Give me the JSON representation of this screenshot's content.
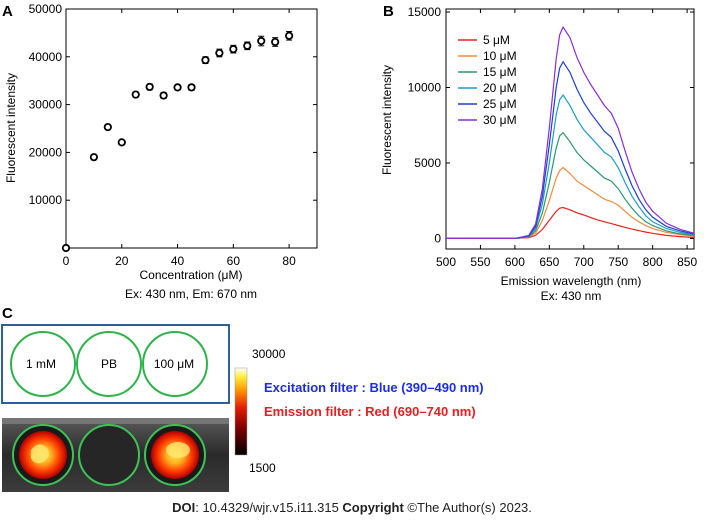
{
  "chart_data": [
    {
      "panel": "A",
      "type": "scatter",
      "xlabel": "Concentration (μM)",
      "ylabel": "Fluorescent intensity",
      "caption": "Ex: 430 nm, Em: 670 nm",
      "xlim": [
        0,
        90
      ],
      "ylim": [
        0,
        50000
      ],
      "xticks": [
        0,
        20,
        40,
        60,
        80
      ],
      "yticks": [
        10000,
        20000,
        30000,
        40000,
        50000
      ],
      "x": [
        0,
        10,
        15,
        20,
        25,
        30,
        35,
        40,
        45,
        50,
        55,
        60,
        65,
        70,
        75,
        80
      ],
      "y": [
        0,
        19000,
        25300,
        22100,
        32100,
        33700,
        31900,
        33600,
        33600,
        39300,
        40800,
        41600,
        42300,
        43300,
        43100,
        44400
      ],
      "yerr": [
        0,
        300,
        300,
        300,
        500,
        600,
        600,
        500,
        600,
        700,
        800,
        800,
        800,
        1000,
        900,
        900
      ]
    },
    {
      "panel": "B",
      "type": "line",
      "xlabel": "Emission wavelength (nm)",
      "ylabel": "Fluorescent intensity",
      "caption": "Ex: 430 nm",
      "xlim": [
        500,
        860
      ],
      "ylim": [
        -700,
        15200
      ],
      "xticks": [
        500,
        550,
        600,
        650,
        700,
        750,
        800,
        850
      ],
      "yticks": [
        0,
        5000,
        10000,
        15000
      ],
      "x": [
        500,
        550,
        600,
        620,
        630,
        640,
        650,
        660,
        665,
        670,
        680,
        690,
        700,
        710,
        720,
        730,
        740,
        750,
        760,
        770,
        780,
        790,
        800,
        820,
        840,
        860
      ],
      "series": [
        {
          "name": "5 μM",
          "color": "#e8231f",
          "values": [
            0,
            0,
            0,
            50,
            200,
            600,
            1200,
            1800,
            2000,
            2050,
            1900,
            1700,
            1550,
            1380,
            1230,
            1100,
            980,
            860,
            730,
            620,
            520,
            420,
            340,
            200,
            120,
            60
          ]
        },
        {
          "name": "10 μM",
          "color": "#f58a3e",
          "values": [
            0,
            0,
            0,
            80,
            350,
            1200,
            2500,
            4000,
            4500,
            4700,
            4300,
            3800,
            3500,
            3200,
            2900,
            2600,
            2450,
            2200,
            1800,
            1400,
            1100,
            850,
            650,
            400,
            250,
            150
          ]
        },
        {
          "name": "15 μM",
          "color": "#2a9a6a",
          "values": [
            0,
            0,
            0,
            100,
            500,
            1700,
            3700,
            6000,
            6800,
            7000,
            6400,
            5700,
            5200,
            4800,
            4400,
            4000,
            3800,
            3300,
            2600,
            2000,
            1500,
            1100,
            850,
            500,
            300,
            200
          ]
        },
        {
          "name": "20 μM",
          "color": "#1e9cc4",
          "values": [
            0,
            0,
            0,
            130,
            650,
            2300,
            5000,
            8200,
            9200,
            9500,
            8800,
            7900,
            7200,
            6700,
            6200,
            5700,
            5400,
            4700,
            3700,
            2800,
            2100,
            1500,
            1100,
            650,
            400,
            250
          ]
        },
        {
          "name": "25 μM",
          "color": "#1d3fd4",
          "values": [
            0,
            0,
            0,
            160,
            800,
            2800,
            6200,
            10000,
            11300,
            11700,
            11000,
            9900,
            9000,
            8300,
            7700,
            7100,
            6700,
            5800,
            4600,
            3500,
            2600,
            1900,
            1400,
            800,
            500,
            300
          ]
        },
        {
          "name": "30 μM",
          "color": "#8b2fd6",
          "values": [
            0,
            0,
            0,
            200,
            950,
            3300,
            7300,
            11900,
            13500,
            14000,
            13300,
            12000,
            11000,
            10200,
            9500,
            8800,
            8300,
            7300,
            5800,
            4400,
            3300,
            2400,
            1800,
            1000,
            600,
            350
          ]
        }
      ]
    }
  ],
  "panels": {
    "a": "A",
    "b": "B",
    "c": "C"
  },
  "wells": [
    "1 mM",
    "PB",
    "100 μM"
  ],
  "colorbar": {
    "max_label": "30000",
    "min_label": "1500"
  },
  "filters": {
    "excitation": "Excitation filter : Blue (390–490 nm)",
    "emission": "Emission filter : Red (690–740 nm)"
  },
  "colors": {
    "well_ring": "#2fb34a",
    "well_box": "#2f5f9e",
    "excitation": "#1a2ee6",
    "emission": "#e62020"
  },
  "footer": {
    "doi_label": "DOI",
    "doi_value": ": 10.4329/wjr.v15.i11.315 ",
    "copyright_label": "Copyright",
    "copyright_value": " ©The Author(s) 2023."
  }
}
